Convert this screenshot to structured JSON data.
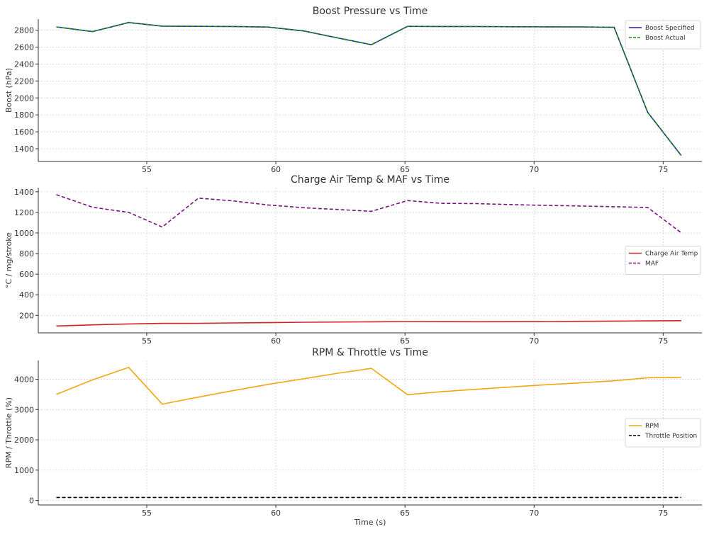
{
  "chart_data": [
    {
      "type": "line",
      "title": "Boost Pressure vs Time",
      "xlabel": "",
      "ylabel": "Boost (hPa)",
      "xlim": [
        50.8,
        76.5
      ],
      "ylim": [
        1250,
        2930
      ],
      "xticks": [
        55,
        60,
        65,
        70,
        75
      ],
      "yticks": [
        1400,
        1600,
        1800,
        2000,
        2200,
        2400,
        2600,
        2800
      ],
      "grid": true,
      "legend_position": "top-right",
      "x": [
        51.5,
        52.9,
        54.3,
        55.6,
        57.0,
        58.3,
        59.7,
        61.1,
        62.4,
        63.7,
        65.1,
        66.4,
        67.8,
        69.2,
        70.5,
        71.8,
        73.1,
        74.4,
        75.7
      ],
      "series": [
        {
          "name": "Boost Specified",
          "color": "#1f1fa8",
          "dash": "solid",
          "values": [
            2838,
            2783,
            2890,
            2847,
            2845,
            2843,
            2836,
            2790,
            2708,
            2628,
            2845,
            2843,
            2842,
            2840,
            2839,
            2838,
            2833,
            1830,
            1320
          ]
        },
        {
          "name": "Boost Actual",
          "color": "#1a8a1a",
          "dash": "dashed",
          "values": [
            2838,
            2783,
            2890,
            2847,
            2845,
            2843,
            2836,
            2790,
            2708,
            2628,
            2845,
            2843,
            2842,
            2840,
            2839,
            2838,
            2833,
            1830,
            1320
          ]
        }
      ]
    },
    {
      "type": "line",
      "title": "Charge Air Temp & MAF vs Time",
      "xlabel": "",
      "ylabel": "°C / mg/stroke",
      "xlim": [
        50.8,
        76.5
      ],
      "ylim": [
        30,
        1440
      ],
      "xticks": [
        55,
        60,
        65,
        70,
        75
      ],
      "yticks": [
        200,
        400,
        600,
        800,
        1000,
        1200,
        1400
      ],
      "grid": true,
      "legend_position": "center-right",
      "x": [
        51.5,
        52.9,
        54.3,
        55.6,
        57.0,
        58.3,
        59.7,
        61.1,
        62.4,
        63.7,
        65.1,
        66.4,
        67.8,
        69.2,
        70.5,
        71.8,
        73.1,
        74.4,
        75.7
      ],
      "series": [
        {
          "name": "Charge Air Temp",
          "color": "#d42222",
          "dash": "solid",
          "values": [
            97,
            108,
            117,
            122,
            123,
            126,
            129,
            133,
            135,
            137,
            140,
            139,
            138,
            139,
            140,
            142,
            144,
            146,
            148
          ]
        },
        {
          "name": "MAF",
          "color": "#7a1380",
          "dash": "dashed",
          "values": [
            1372,
            1250,
            1200,
            1058,
            1338,
            1313,
            1272,
            1245,
            1228,
            1210,
            1315,
            1288,
            1285,
            1275,
            1268,
            1262,
            1255,
            1248,
            1002
          ]
        }
      ]
    },
    {
      "type": "line",
      "title": "RPM & Throttle vs Time",
      "xlabel": "Time (s)",
      "ylabel": "RPM / Throttle (%)",
      "xlim": [
        50.8,
        76.5
      ],
      "ylim": [
        -150,
        4620
      ],
      "xticks": [
        55,
        60,
        65,
        70,
        75
      ],
      "yticks": [
        0,
        1000,
        2000,
        3000,
        4000
      ],
      "grid": true,
      "legend_position": "center-right",
      "x": [
        51.5,
        52.9,
        54.3,
        55.6,
        57.0,
        58.3,
        59.7,
        61.1,
        62.4,
        63.7,
        65.1,
        66.4,
        67.8,
        69.2,
        70.5,
        71.8,
        73.1,
        74.4,
        75.7
      ],
      "series": [
        {
          "name": "RPM",
          "color": "#f0a80e",
          "dash": "solid",
          "values": [
            3500,
            3980,
            4390,
            3180,
            3410,
            3620,
            3830,
            4020,
            4200,
            4360,
            3490,
            3590,
            3670,
            3750,
            3820,
            3880,
            3950,
            4050,
            4065
          ]
        },
        {
          "name": "Throttle Position",
          "color": "#000000",
          "dash": "dashed",
          "values": [
            99,
            99,
            99,
            99,
            99,
            99,
            99,
            99,
            99,
            99,
            99,
            99,
            99,
            99,
            99,
            99,
            99,
            99,
            99
          ]
        }
      ]
    }
  ]
}
